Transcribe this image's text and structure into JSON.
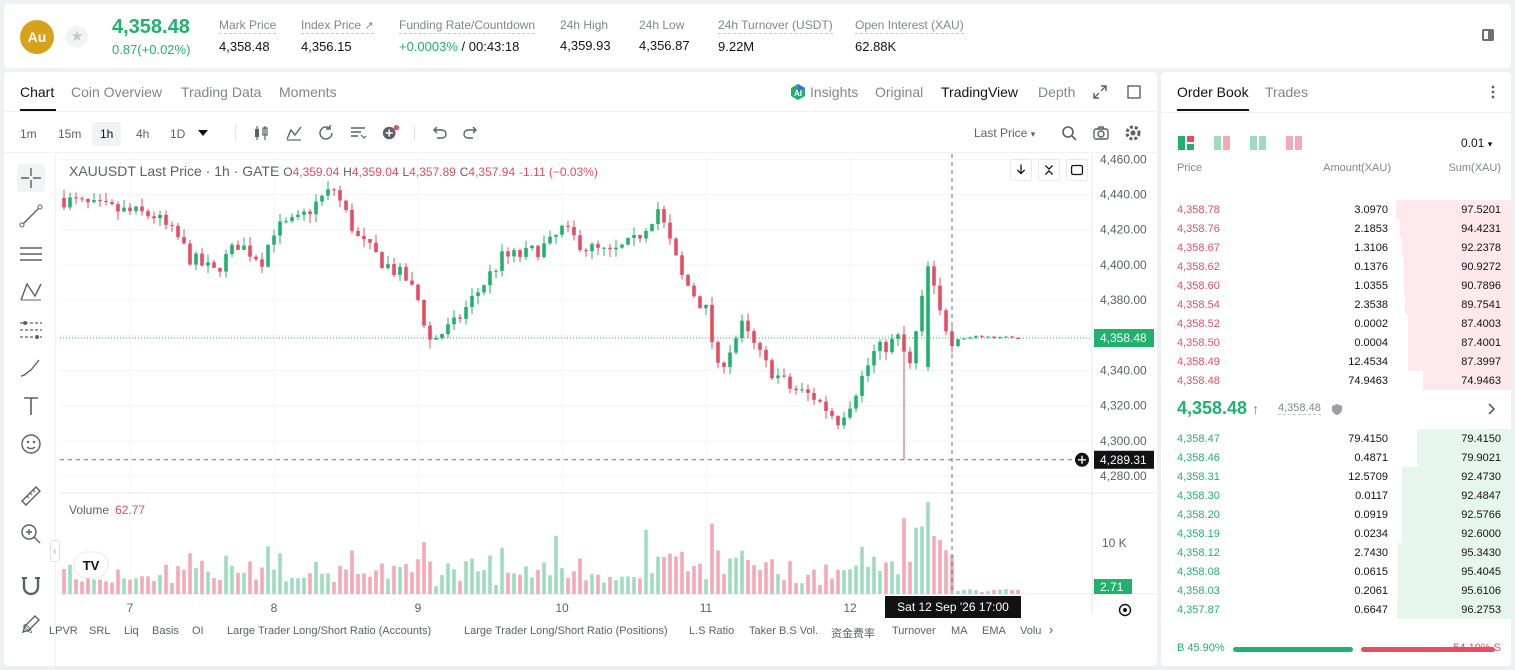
{
  "header": {
    "coin_logo": "Au",
    "last_price": "4,358.48",
    "price_change": "0.87(+0.02%)",
    "stats": [
      {
        "label": "Mark Price",
        "value": "4,358.48"
      },
      {
        "label": "Index Price",
        "value": "4,356.15"
      },
      {
        "label": "Funding Rate/Countdown",
        "value_green": "+0.0003%",
        "value": " / 00:43:18"
      },
      {
        "label": "24h High",
        "value": "4,359.93"
      },
      {
        "label": "24h Low",
        "value": "4,356.87"
      },
      {
        "label": "24h Turnover (USDT)",
        "value": "9.22M"
      },
      {
        "label": "Open Interest (XAU)",
        "value": "62.88K"
      }
    ]
  },
  "chart_tabs": [
    "Chart",
    "Coin Overview",
    "Trading Data",
    "Moments"
  ],
  "views": {
    "insights": "Insights",
    "original": "Original",
    "tradingview": "TradingView",
    "depth": "Depth"
  },
  "timeframes": [
    "1m",
    "15m",
    "1h",
    "4h",
    "1D"
  ],
  "price_type": "Last Price",
  "legend": {
    "title": "XAUUSDT Last Price · 1h · GATE",
    "o_k": "O",
    "o": "4,359.04",
    "h_k": "H",
    "h": "4,359.04",
    "l_k": "L",
    "l": "4,357.89",
    "c_k": "C",
    "c": "4,357.94",
    "chg": "-1.11 (−0.03%)"
  },
  "volume_legend": {
    "label": "Volume",
    "value": "62.77"
  },
  "current_price_tag": "4,358.48",
  "crosshair_price_tag": "4,289.31",
  "crosshair_date_tag": "Sat 12 Sep '26   17:00",
  "volume_tag": "2.71",
  "volume_axis_label": "10 K",
  "indicators": [
    "LPVR",
    "SRL",
    "Liq",
    "Basis",
    "OI",
    "Large Trader Long/Short Ratio (Accounts)",
    "Large Trader Long/Short Ratio (Positions)",
    "L.S Ratio",
    "Taker B.S Vol.",
    "资金费率",
    "Turnover",
    "MA",
    "EMA",
    "Volu"
  ],
  "chart_data": {
    "type": "candlestick",
    "ylim": [
      4271,
      4463
    ],
    "y_ticks": [
      "4,460.00",
      "4,440.00",
      "4,420.00",
      "4,400.00",
      "4,380.00",
      "4,360.00",
      "4,340.00",
      "4,320.00",
      "4,300.00",
      "4,280.00"
    ],
    "y_tick_values": [
      4460,
      4440,
      4420,
      4400,
      4380,
      4360,
      4340,
      4320,
      4300,
      4280
    ],
    "x_ticks": [
      "7",
      "8",
      "9",
      "10",
      "11",
      "12"
    ],
    "x_tick_values": [
      0,
      24,
      48,
      72,
      96,
      120
    ],
    "current_price": 4358.48,
    "crosshair_price": 4289.31,
    "series_close_anchors": [
      [
        -12,
        4438
      ],
      [
        -6,
        4433
      ],
      [
        0,
        4430
      ],
      [
        4,
        4428
      ],
      [
        8,
        4415
      ],
      [
        10,
        4404
      ],
      [
        14,
        4396
      ],
      [
        18,
        4412
      ],
      [
        22,
        4403
      ],
      [
        24,
        4420
      ],
      [
        28,
        4425
      ],
      [
        32,
        4438
      ],
      [
        34,
        4443
      ],
      [
        38,
        4415
      ],
      [
        42,
        4402
      ],
      [
        46,
        4392
      ],
      [
        48,
        4380
      ],
      [
        50,
        4357
      ],
      [
        54,
        4366
      ],
      [
        58,
        4385
      ],
      [
        62,
        4404
      ],
      [
        66,
        4406
      ],
      [
        70,
        4412
      ],
      [
        72,
        4420
      ],
      [
        76,
        4410
      ],
      [
        80,
        4406
      ],
      [
        84,
        4413
      ],
      [
        88,
        4432
      ],
      [
        92,
        4393
      ],
      [
        96,
        4374
      ],
      [
        98,
        4340
      ],
      [
        102,
        4365
      ],
      [
        106,
        4343
      ],
      [
        110,
        4330
      ],
      [
        114,
        4325
      ],
      [
        118,
        4312
      ],
      [
        120,
        4322
      ],
      [
        124,
        4350
      ],
      [
        128,
        4358
      ],
      [
        130,
        4342
      ],
      [
        133,
        4398
      ],
      [
        135,
        4372
      ],
      [
        137,
        4358
      ],
      [
        141,
        4359
      ],
      [
        155,
        4358.4
      ]
    ]
  },
  "orderbook": {
    "tabs": [
      "Order Book",
      "Trades"
    ],
    "precision": "0.01",
    "col_price": "Price",
    "col_amount": "Amount(XAU)",
    "col_sum": "Sum(XAU)",
    "asks": [
      {
        "price": "4,358.78",
        "amount": "3.0970",
        "sum": "97.5201",
        "depth": 97.52
      },
      {
        "price": "4,358.76",
        "amount": "2.1853",
        "sum": "94.4231",
        "depth": 94.42
      },
      {
        "price": "4,358.67",
        "amount": "1.3106",
        "sum": "92.2378",
        "depth": 92.24
      },
      {
        "price": "4,358.62",
        "amount": "0.1376",
        "sum": "90.9272",
        "depth": 90.93
      },
      {
        "price": "4,358.60",
        "amount": "1.0355",
        "sum": "90.7896",
        "depth": 90.79
      },
      {
        "price": "4,358.54",
        "amount": "2.3538",
        "sum": "89.7541",
        "depth": 89.75
      },
      {
        "price": "4,358.52",
        "amount": "0.0002",
        "sum": "87.4003",
        "depth": 87.4
      },
      {
        "price": "4,358.50",
        "amount": "0.0004",
        "sum": "87.4001",
        "depth": 87.4
      },
      {
        "price": "4,358.49",
        "amount": "12.4534",
        "sum": "87.3997",
        "depth": 87.4
      },
      {
        "price": "4,358.48",
        "amount": "74.9463",
        "sum": "74.9463",
        "depth": 74.95
      }
    ],
    "mid_price": "4,358.48",
    "mark_price": "4,358.48",
    "bids": [
      {
        "price": "4,358.47",
        "amount": "79.4150",
        "sum": "79.4150",
        "depth": 79.42
      },
      {
        "price": "4,358.46",
        "amount": "0.4871",
        "sum": "79.9021",
        "depth": 79.9
      },
      {
        "price": "4,358.31",
        "amount": "12.5709",
        "sum": "92.4730",
        "depth": 92.47
      },
      {
        "price": "4,358.30",
        "amount": "0.0117",
        "sum": "92.4847",
        "depth": 92.48
      },
      {
        "price": "4,358.20",
        "amount": "0.0919",
        "sum": "92.5766",
        "depth": 92.58
      },
      {
        "price": "4,358.19",
        "amount": "0.0234",
        "sum": "92.6000",
        "depth": 92.6
      },
      {
        "price": "4,358.12",
        "amount": "2.7430",
        "sum": "95.3430",
        "depth": 95.34
      },
      {
        "price": "4,358.08",
        "amount": "0.0615",
        "sum": "95.4045",
        "depth": 95.4
      },
      {
        "price": "4,358.03",
        "amount": "0.2061",
        "sum": "95.6106",
        "depth": 95.61
      },
      {
        "price": "4,357.87",
        "amount": "0.6647",
        "sum": "96.2753",
        "depth": 96.28
      }
    ],
    "buy_ratio": "B 45.90%",
    "sell_ratio": "54.10% S",
    "buy_ratio_value": 45.9
  },
  "colors": {
    "up": "#20b26c",
    "down": "#e54d63",
    "up_vol": "#9fdcbf",
    "down_vol": "#f4aab6"
  }
}
